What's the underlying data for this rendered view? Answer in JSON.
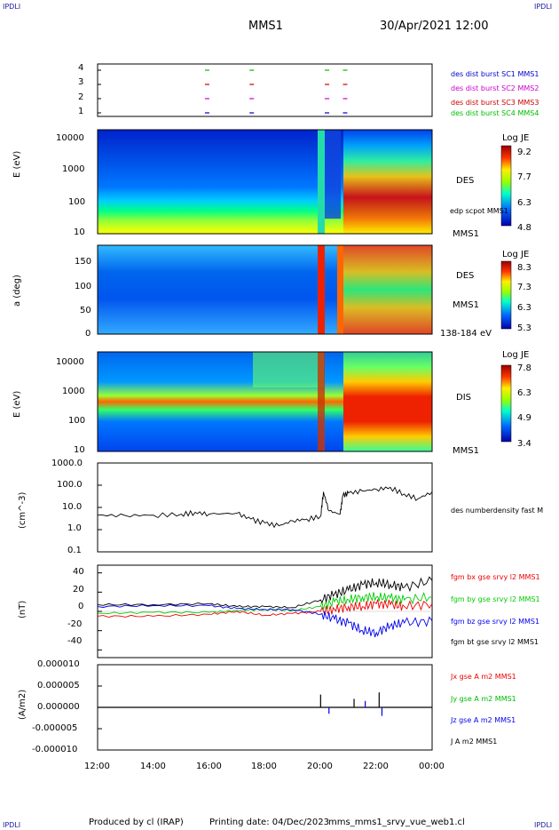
{
  "header": {
    "corner_tl": "IPDLI",
    "corner_tr": "IPDLI",
    "corner_bl": "IPDLI",
    "corner_br": "IPDLI",
    "mission": "MMS1",
    "datetime": "30/Apr/2021 12:00"
  },
  "footer": {
    "produced_by": "Produced by cl (IRAP)",
    "printing_date": "Printing date: 04/Dec/2023",
    "file_name": "mms_mms1_srvy_vue_web1.cl"
  },
  "colors": {
    "mms1": "#0000cc",
    "mms2": "#cc00cc",
    "mms3": "#cc0000",
    "mms4": "#00bb00",
    "bx": "#ee0000",
    "by": "#00cc00",
    "bz": "#0000ee",
    "bt": "#000000",
    "frame": "#000000"
  },
  "x_ticks": [
    "12:00",
    "14:00",
    "16:00",
    "18:00",
    "20:00",
    "22:00",
    "00:00"
  ],
  "chart_data": [
    {
      "id": "burst",
      "type": "scatter",
      "y_ticks": [
        "4",
        "3",
        "2",
        "1"
      ],
      "legend": [
        {
          "label": "des dist burst SC1 MMS1",
          "color": "#0000cc"
        },
        {
          "label": "des dist burst SC2 MMS2",
          "color": "#cc00cc"
        },
        {
          "label": "des dist burst SC3 MMS3",
          "color": "#cc0000"
        },
        {
          "label": "des dist burst SC4 MMS4",
          "color": "#00bb00"
        }
      ],
      "intervals_hours": [
        15.85,
        17.45,
        20.15,
        20.8
      ]
    },
    {
      "id": "des_energy",
      "type": "heatmap",
      "ylabel": "E (eV)",
      "y_ticks": [
        "10000",
        "1000",
        "100",
        "10"
      ],
      "label_right": "DES",
      "label_bottom": "MMS1",
      "overlay_label": "edp scpot MMS1",
      "colorbar": {
        "title": "Log JE",
        "ticks": [
          "9.2",
          "7.7",
          "6.3",
          "4.8"
        ]
      }
    },
    {
      "id": "des_pitch",
      "type": "heatmap",
      "ylabel": "a (deg)",
      "y_ticks": [
        "150",
        "100",
        "50",
        "0"
      ],
      "label_right": "DES",
      "label_mid": "MMS1",
      "label_bottom": "138-184 eV",
      "colorbar": {
        "title": "Log JE",
        "ticks": [
          "8.3",
          "7.3",
          "6.3",
          "5.3"
        ]
      }
    },
    {
      "id": "dis_energy",
      "type": "heatmap",
      "ylabel": "E (eV)",
      "y_ticks": [
        "10000",
        "1000",
        "100",
        "10"
      ],
      "label_right": "DIS",
      "label_bottom": "MMS1",
      "colorbar": {
        "title": "Log JE",
        "ticks": [
          "7.8",
          "6.3",
          "4.9",
          "3.4"
        ]
      }
    },
    {
      "id": "density",
      "type": "line",
      "ylabel": "(cm^-3)",
      "y_ticks": [
        "1000.0",
        "100.0",
        "10.0",
        "1.0",
        "0.1"
      ],
      "legend": [
        {
          "label": "des numberdensity fast M",
          "color": "#000000"
        }
      ],
      "x_hours": [
        12,
        13,
        14,
        15,
        15.5,
        16,
        17,
        17.5,
        18,
        18.5,
        19,
        19.5,
        20,
        20.1,
        20.3,
        20.7,
        20.8,
        21,
        21.5,
        22,
        22.5,
        23,
        23.5,
        24
      ],
      "values": [
        4.5,
        4.3,
        4.5,
        5.0,
        6.0,
        5.0,
        5.5,
        3.0,
        2.0,
        1.5,
        2.5,
        3.0,
        4.0,
        50,
        7,
        5,
        35,
        45,
        55,
        65,
        80,
        40,
        25,
        50
      ]
    },
    {
      "id": "magnetic_field",
      "type": "line",
      "ylabel": "(nT)",
      "y_ticks": [
        "40",
        "20",
        "0",
        "-20",
        "-40"
      ],
      "ylim": [
        -48,
        48
      ],
      "legend": [
        {
          "label": "fgm bx gse srvy l2 MMS1",
          "color": "#ee0000"
        },
        {
          "label": "fgm by gse srvy l2 MMS1",
          "color": "#00cc00"
        },
        {
          "label": "fgm bz gse srvy l2 MMS1",
          "color": "#0000ee"
        },
        {
          "label": "fgm bt gse srvy l2 MMS1",
          "color": "#000000"
        }
      ],
      "x_hours": [
        12,
        14,
        16,
        17,
        18,
        19,
        20,
        20.5,
        21,
        21.5,
        22,
        22.5,
        23,
        24
      ],
      "series": [
        {
          "name": "fgm bx gse srvy l2 MMS1",
          "values": [
            -5,
            -5,
            -3,
            0,
            -4,
            -2,
            0,
            2,
            5,
            5,
            8,
            7,
            5,
            8
          ]
        },
        {
          "name": "fgm by gse srvy l2 MMS1",
          "values": [
            -2,
            -1,
            -1,
            1,
            2,
            1,
            5,
            10,
            12,
            15,
            15,
            14,
            12,
            15
          ]
        },
        {
          "name": "fgm bz gse srvy l2 MMS1",
          "values": [
            5,
            6,
            6,
            3,
            2,
            2,
            -3,
            -8,
            -12,
            -20,
            -22,
            -15,
            -12,
            -10
          ]
        },
        {
          "name": "fgm bt gse srvy l2 MMS1",
          "values": [
            7,
            7,
            8,
            5,
            5,
            4,
            12,
            18,
            22,
            28,
            30,
            28,
            25,
            32
          ]
        }
      ]
    },
    {
      "id": "current_density",
      "type": "line",
      "ylabel": "(A/m2)",
      "y_ticks": [
        "0.000010",
        "0.000005",
        "0.000000",
        "-0.000005",
        "-0.000010"
      ],
      "ylim": [
        -1e-05,
        1e-05
      ],
      "legend": [
        {
          "label": "Jx gse A m2 MMS1",
          "color": "#ee0000"
        },
        {
          "label": "Jy gse A m2 MMS1",
          "color": "#00bb00"
        },
        {
          "label": "Jz gse A m2 MMS1",
          "color": "#0000ee"
        },
        {
          "label": "J A m2 MMS1",
          "color": "#000000"
        }
      ]
    }
  ]
}
